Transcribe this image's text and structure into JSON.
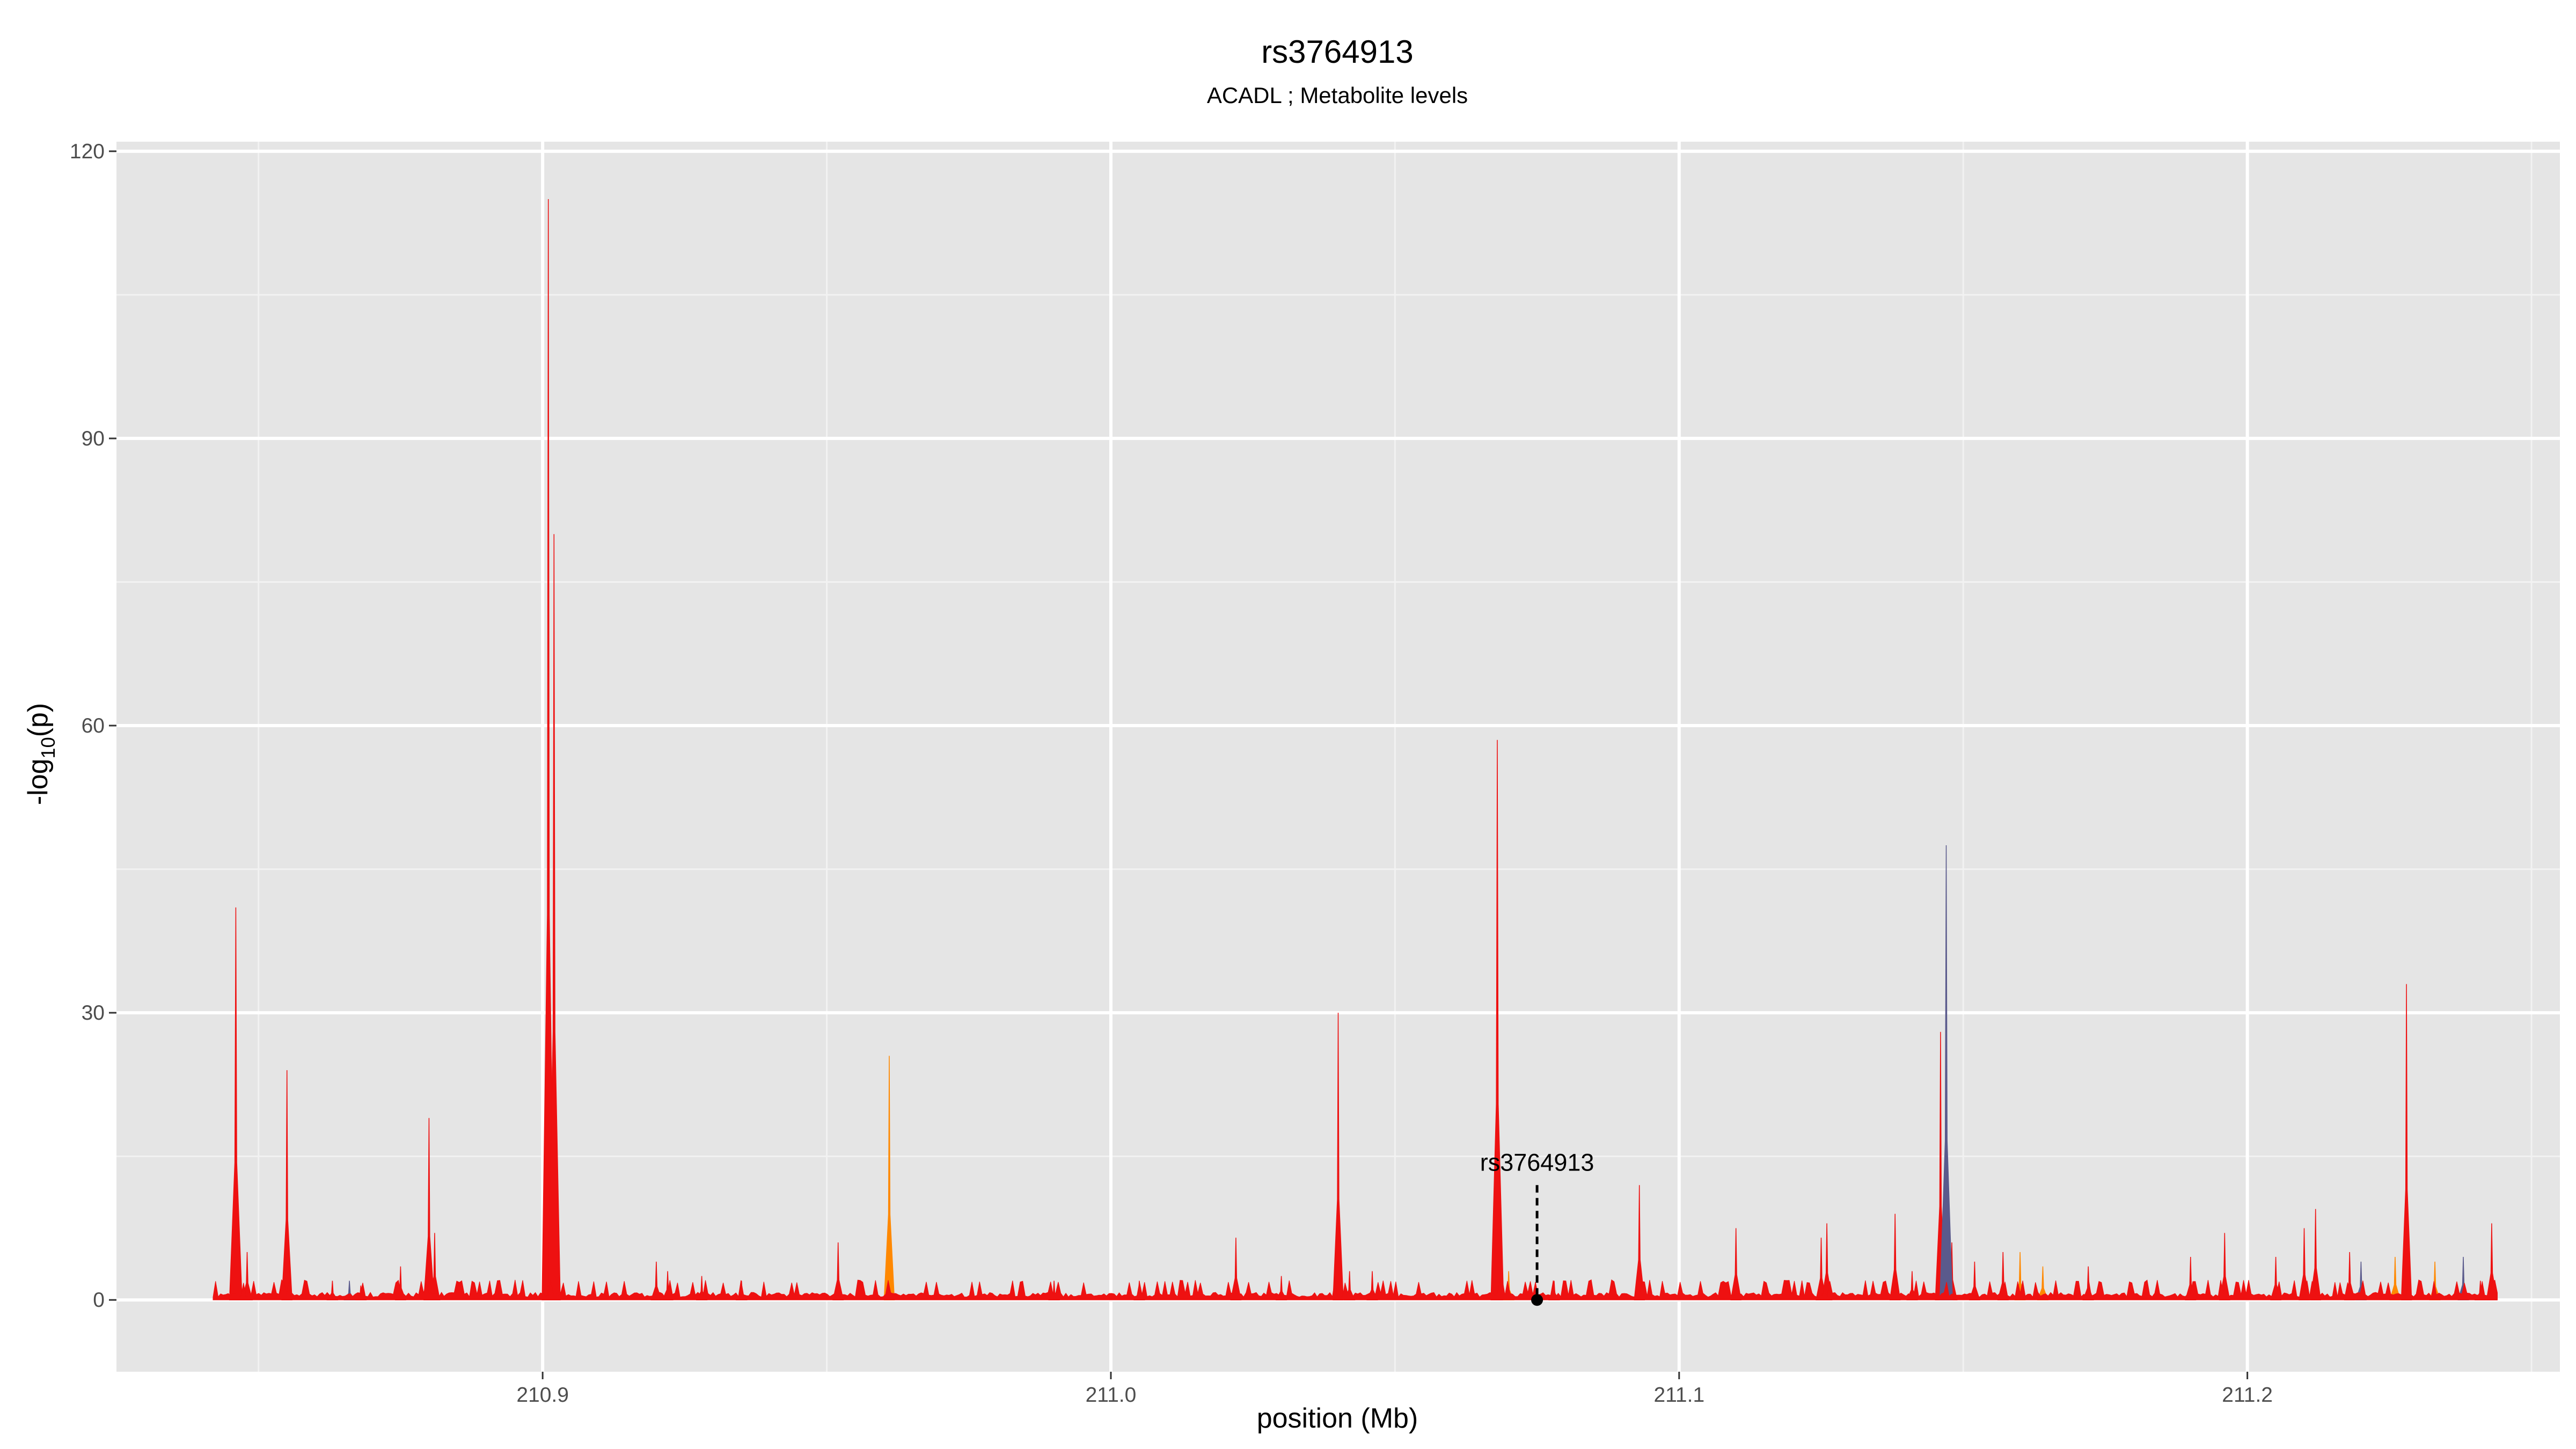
{
  "chart_data": {
    "type": "area",
    "title": "rs3764913",
    "subtitle": "ACADL ; Metabolite levels",
    "xlabel": "position (Mb)",
    "ylabel": "-log10(p)",
    "ylabel_main": "-log",
    "ylabel_sub": "10",
    "ylabel_tail": "(p)",
    "xlim": [
      210.825,
      211.255
    ],
    "ylim": [
      -7.5,
      121
    ],
    "x_ticks": [
      210.9,
      211.0,
      211.1,
      211.2
    ],
    "x_tick_labels": [
      "210.9",
      "211.0",
      "211.1",
      "211.2"
    ],
    "y_ticks": [
      0,
      30,
      60,
      90,
      120
    ],
    "y_tick_labels": [
      "0",
      "30",
      "60",
      "90",
      "120"
    ],
    "grid": true,
    "background": "#e5e5e5",
    "series_colors": [
      "#ee1111",
      "#ff8800",
      "#5a5a8c"
    ],
    "series": [
      {
        "x": [
          210.846,
          210.848,
          210.855,
          210.863,
          210.868,
          210.875,
          210.88,
          210.881,
          210.901,
          210.902,
          210.92,
          210.922,
          210.928,
          210.935,
          210.952,
          210.99,
          211.005,
          211.022,
          211.03,
          211.04,
          211.042,
          211.046,
          211.068,
          211.078,
          211.093,
          211.11,
          211.125,
          211.126,
          211.138,
          211.141,
          211.146,
          211.148,
          211.152,
          211.157,
          211.172,
          211.19,
          211.196,
          211.205,
          211.21,
          211.212,
          211.218,
          211.228,
          211.241,
          211.243
        ],
        "y": [
          41,
          5,
          24,
          2,
          1.5,
          3.5,
          19,
          7,
          115,
          80,
          4,
          3,
          2.5,
          2,
          6,
          2,
          2,
          6.5,
          2.5,
          30,
          3,
          3,
          58.5,
          2,
          12,
          7.5,
          6.5,
          8,
          9,
          3,
          28,
          6,
          4,
          5,
          3.5,
          4.5,
          7,
          4.5,
          7.5,
          9.5,
          5,
          33,
          2,
          8
        ]
      },
      {
        "x": [
          210.961,
          211.07,
          211.16,
          211.164,
          211.226,
          211.233
        ],
        "y": [
          25.5,
          3,
          5,
          3.5,
          4.5,
          4
        ]
      },
      {
        "x": [
          210.866,
          211.147,
          211.22,
          211.238
        ],
        "y": [
          2,
          47.5,
          4,
          4.5
        ]
      }
    ],
    "annotation": {
      "label": "rs3764913",
      "x": 211.075,
      "y": 0
    }
  }
}
